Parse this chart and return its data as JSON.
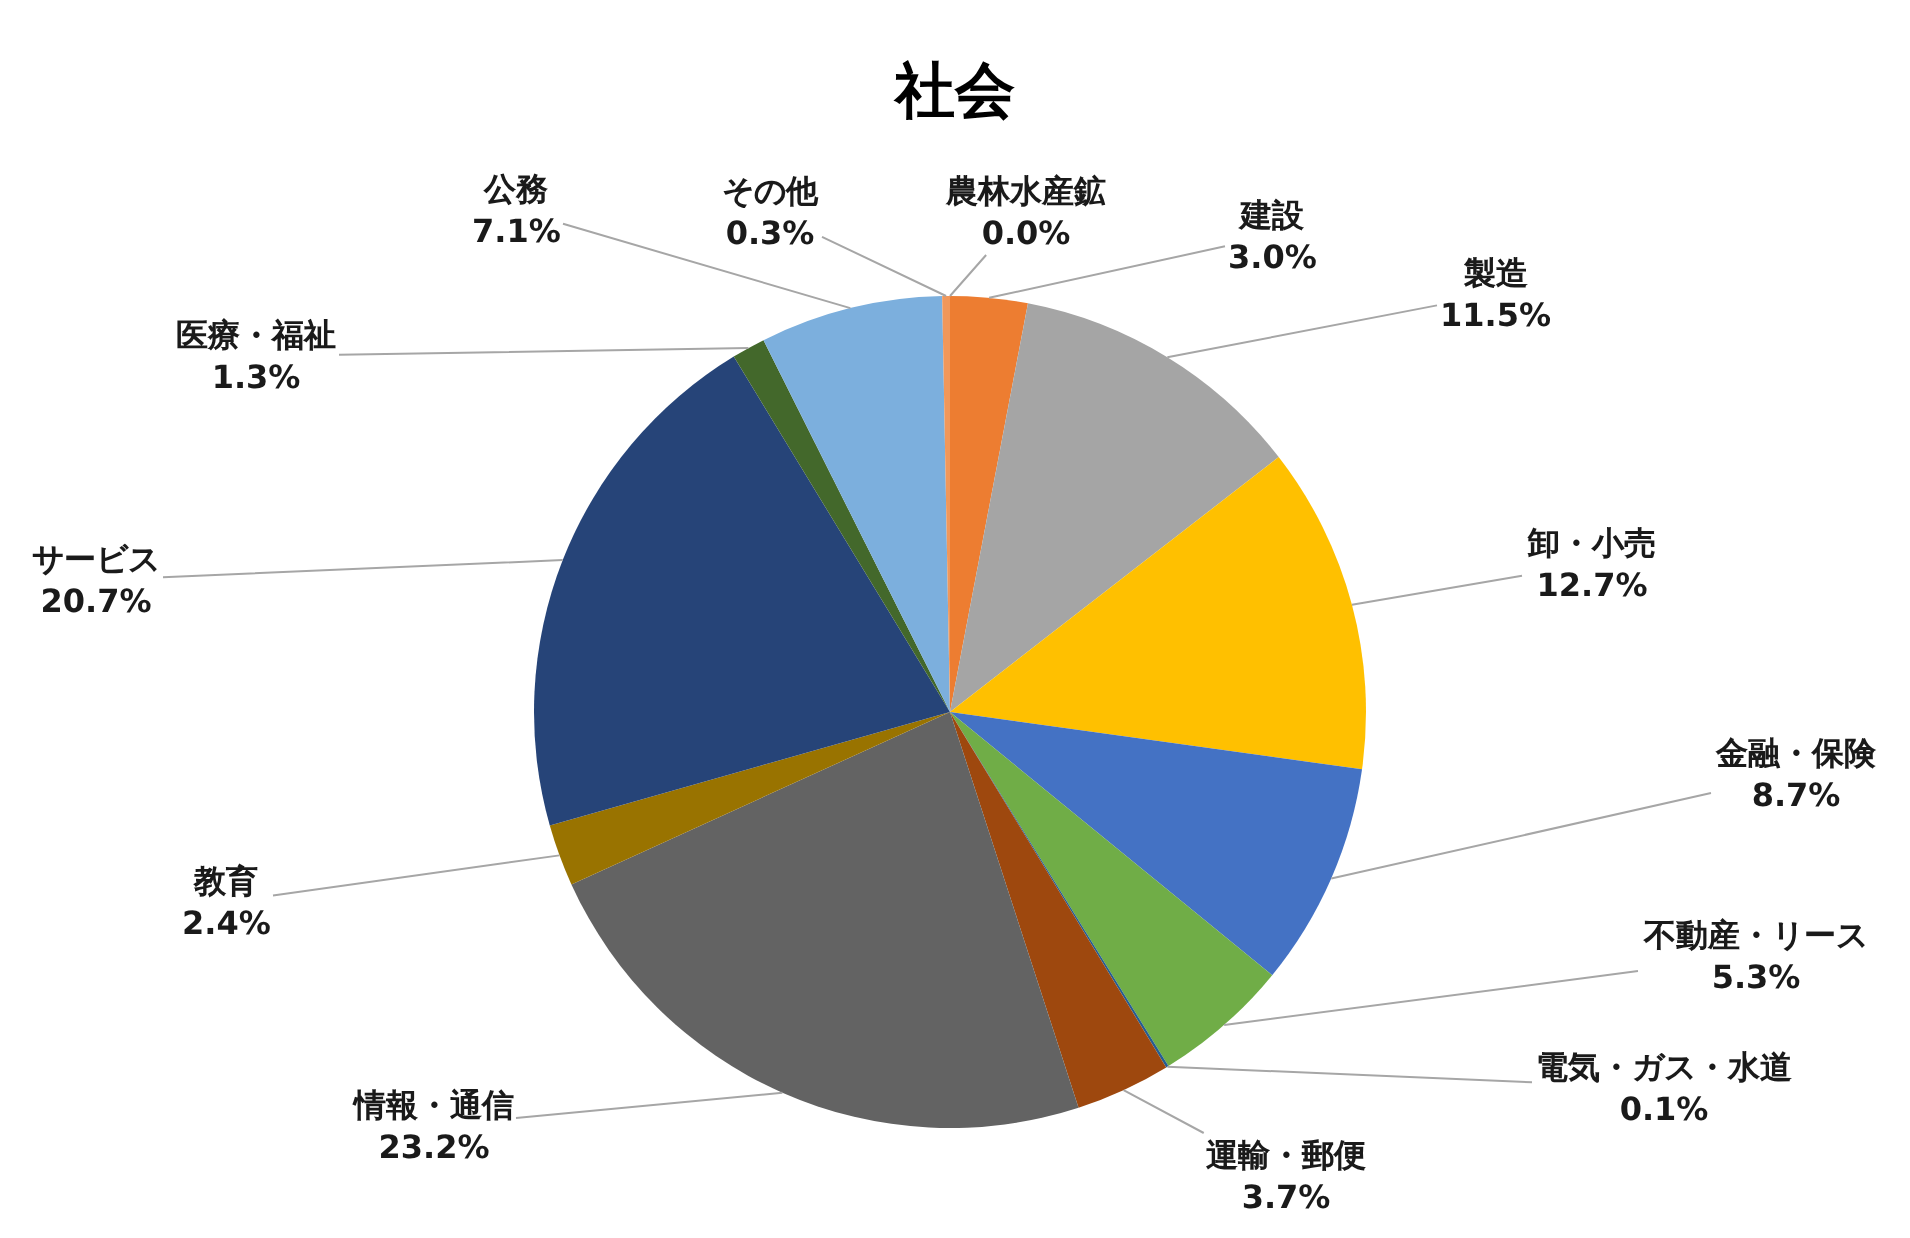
{
  "chart_data": {
    "type": "pie",
    "title": "社会",
    "categories": [
      "農林水産鉱",
      "建設",
      "製造",
      "卸・小売",
      "金融・保険",
      "不動産・リース",
      "電気・ガス・水道",
      "運輸・郵便",
      "情報・通信",
      "教育",
      "サービス",
      "医療・福祉",
      "公務",
      "その他"
    ],
    "values": [
      0.0,
      3.0,
      11.5,
      12.7,
      8.7,
      5.3,
      0.1,
      3.7,
      23.2,
      2.4,
      20.7,
      1.3,
      7.1,
      0.3
    ],
    "colors": [
      "#5b9bd5",
      "#ed7d31",
      "#a5a5a5",
      "#ffc000",
      "#4472c4",
      "#70ad47",
      "#255e91",
      "#9e480e",
      "#636363",
      "#997300",
      "#264478",
      "#43682b",
      "#7cafdd",
      "#f1975a"
    ],
    "value_labels": [
      "0.0%",
      "3.0%",
      "11.5%",
      "12.7%",
      "8.7%",
      "5.3%",
      "0.1%",
      "3.7%",
      "23.2%",
      "2.4%",
      "20.7%",
      "1.3%",
      "7.1%",
      "0.3%"
    ]
  }
}
